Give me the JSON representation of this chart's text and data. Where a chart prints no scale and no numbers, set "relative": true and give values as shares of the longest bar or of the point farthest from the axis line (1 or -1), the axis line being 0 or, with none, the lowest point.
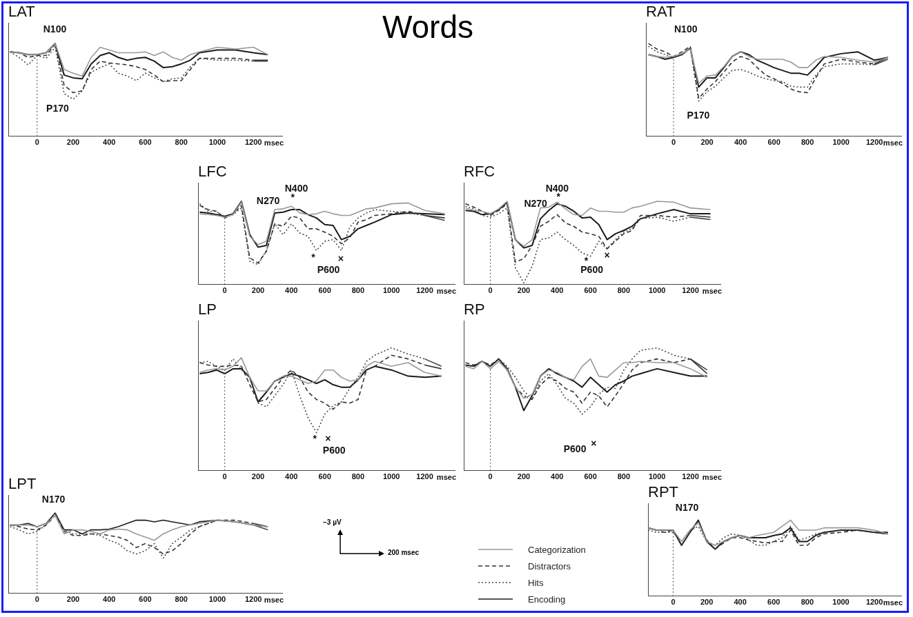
{
  "chart_data": [
    {
      "type": "line",
      "title": "LAT",
      "relative": true,
      "xlabel": "msec",
      "xlim": [
        -160,
        1360
      ],
      "xticks": [
        0,
        200,
        400,
        600,
        800,
        1000,
        1200
      ],
      "grid": false,
      "x": [
        -150,
        -100,
        -50,
        0,
        50,
        100,
        150,
        200,
        250,
        300,
        350,
        400,
        450,
        500,
        550,
        600,
        650,
        700,
        750,
        800,
        850,
        900,
        1000,
        1100,
        1200,
        1280
      ],
      "ref_lines": [
        {
          "axis": "x",
          "value": 0,
          "line_style": "dotted"
        }
      ],
      "annotations": [
        "N100",
        "P170"
      ],
      "series": [
        {
          "color": "#999999",
          "line_style": "solid",
          "values": [
            0.91,
            0.9,
            0.88,
            0.88,
            0.9,
            1.0,
            0.72,
            0.68,
            0.65,
            0.85,
            0.96,
            0.93,
            0.9,
            0.9,
            0.9,
            0.91,
            0.87,
            0.91,
            0.85,
            0.82,
            0.88,
            0.91,
            0.96,
            0.94,
            0.96,
            0.88
          ]
        },
        {
          "color": "#333333",
          "line_style": "dashed",
          "values": [
            0.91,
            0.9,
            0.85,
            0.87,
            0.87,
            0.99,
            0.55,
            0.47,
            0.49,
            0.72,
            0.81,
            0.79,
            0.78,
            0.77,
            0.75,
            0.72,
            0.66,
            0.59,
            0.6,
            0.6,
            0.72,
            0.84,
            0.84,
            0.84,
            0.82,
            0.82
          ]
        },
        {
          "color": "#444444",
          "line_style": "dotted",
          "values": [
            0.91,
            0.85,
            0.77,
            0.87,
            0.84,
            0.96,
            0.46,
            0.4,
            0.49,
            0.69,
            0.74,
            0.78,
            0.68,
            0.65,
            0.6,
            0.68,
            0.63,
            0.59,
            0.62,
            0.63,
            0.75,
            0.84,
            0.82,
            0.82,
            0.81,
            0.81
          ]
        },
        {
          "color": "#1a1a1a",
          "line_style": "solid",
          "values": [
            0.91,
            0.9,
            0.88,
            0.88,
            0.9,
            1.0,
            0.66,
            0.63,
            0.62,
            0.78,
            0.87,
            0.9,
            0.85,
            0.82,
            0.84,
            0.85,
            0.81,
            0.74,
            0.75,
            0.78,
            0.82,
            0.9,
            0.93,
            0.93,
            0.9,
            0.88
          ]
        }
      ]
    },
    {
      "type": "other",
      "title": "Words",
      "annotations": [
        "−3 µV",
        "200 msec"
      ]
    },
    {
      "type": "line",
      "title": "RAT",
      "relative": true,
      "xlabel": "msec",
      "xlim": [
        -165,
        1360
      ],
      "xticks": [
        0,
        200,
        400,
        600,
        800,
        1000,
        1200
      ],
      "grid": false,
      "x": [
        -150,
        -100,
        -50,
        0,
        50,
        100,
        150,
        200,
        250,
        300,
        350,
        400,
        450,
        500,
        550,
        600,
        650,
        700,
        750,
        800,
        850,
        900,
        1000,
        1100,
        1200,
        1280
      ],
      "ref_lines": [
        {
          "axis": "x",
          "value": 0,
          "line_style": "dotted"
        }
      ],
      "annotations": [
        "N100",
        "P170"
      ],
      "series": [
        {
          "color": "#999999",
          "line_style": "solid",
          "values": [
            0.88,
            0.86,
            0.85,
            0.86,
            0.89,
            0.94,
            0.57,
            0.65,
            0.66,
            0.75,
            0.86,
            0.91,
            0.86,
            0.83,
            0.83,
            0.83,
            0.83,
            0.8,
            0.74,
            0.74,
            0.82,
            0.86,
            0.85,
            0.82,
            0.8,
            0.85
          ]
        },
        {
          "color": "#333333",
          "line_style": "dashed",
          "values": [
            1.0,
            0.94,
            0.91,
            0.86,
            0.91,
            0.97,
            0.41,
            0.51,
            0.59,
            0.69,
            0.8,
            0.86,
            0.83,
            0.74,
            0.66,
            0.62,
            0.57,
            0.51,
            0.48,
            0.47,
            0.63,
            0.78,
            0.83,
            0.8,
            0.78,
            0.85
          ]
        },
        {
          "color": "#444444",
          "line_style": "dotted",
          "values": [
            0.97,
            0.91,
            0.88,
            0.85,
            0.89,
            0.95,
            0.38,
            0.48,
            0.54,
            0.63,
            0.71,
            0.72,
            0.69,
            0.65,
            0.62,
            0.6,
            0.59,
            0.54,
            0.53,
            0.53,
            0.66,
            0.75,
            0.78,
            0.78,
            0.77,
            0.83
          ]
        },
        {
          "color": "#1a1a1a",
          "line_style": "solid",
          "values": [
            0.88,
            0.86,
            0.83,
            0.85,
            0.88,
            0.95,
            0.53,
            0.63,
            0.63,
            0.74,
            0.86,
            0.91,
            0.88,
            0.82,
            0.78,
            0.74,
            0.71,
            0.68,
            0.68,
            0.66,
            0.75,
            0.85,
            0.89,
            0.91,
            0.82,
            0.85
          ]
        }
      ]
    },
    {
      "type": "line",
      "title": "LFC",
      "relative": true,
      "xlabel": "msec",
      "xlim": [
        -160,
        1380
      ],
      "xticks": [
        0,
        200,
        400,
        600,
        800,
        1000,
        1200
      ],
      "grid": false,
      "x": [
        -150,
        -100,
        -50,
        0,
        50,
        100,
        150,
        200,
        250,
        300,
        350,
        400,
        450,
        500,
        550,
        600,
        650,
        700,
        750,
        800,
        850,
        900,
        1000,
        1100,
        1200,
        1320
      ],
      "ref_lines": [
        {
          "axis": "x",
          "value": 0,
          "line_style": "dotted"
        }
      ],
      "annotations": [
        "N270",
        "N400",
        "*",
        "*",
        "×",
        "P600"
      ],
      "series": [
        {
          "color": "#999999",
          "line_style": "solid",
          "values": [
            0.85,
            0.84,
            0.83,
            0.81,
            0.84,
            0.99,
            0.58,
            0.48,
            0.52,
            0.9,
            0.91,
            0.94,
            0.86,
            0.84,
            0.85,
            0.88,
            0.85,
            0.83,
            0.83,
            0.87,
            0.91,
            0.92,
            0.97,
            0.98,
            0.89,
            0.85
          ]
        },
        {
          "color": "#333333",
          "line_style": "dashed",
          "values": [
            0.95,
            0.9,
            0.88,
            0.8,
            0.85,
            0.95,
            0.32,
            0.26,
            0.4,
            0.73,
            0.7,
            0.82,
            0.8,
            0.67,
            0.67,
            0.63,
            0.58,
            0.49,
            0.56,
            0.75,
            0.78,
            0.83,
            0.85,
            0.88,
            0.83,
            0.8
          ]
        },
        {
          "color": "#444444",
          "line_style": "dotted",
          "values": [
            0.97,
            0.88,
            0.88,
            0.8,
            0.84,
            0.92,
            0.28,
            0.24,
            0.41,
            0.73,
            0.6,
            0.73,
            0.62,
            0.58,
            0.41,
            0.52,
            0.54,
            0.41,
            0.69,
            0.8,
            0.86,
            0.9,
            0.88,
            0.86,
            0.83,
            0.77
          ]
        },
        {
          "color": "#1a1a1a",
          "line_style": "solid",
          "values": [
            0.87,
            0.86,
            0.84,
            0.82,
            0.85,
            1.0,
            0.6,
            0.45,
            0.47,
            0.86,
            0.87,
            0.9,
            0.9,
            0.84,
            0.8,
            0.72,
            0.71,
            0.54,
            0.58,
            0.67,
            0.71,
            0.75,
            0.84,
            0.86,
            0.85,
            0.84
          ]
        }
      ]
    },
    {
      "type": "line",
      "title": "RFC",
      "relative": true,
      "xlabel": "msec",
      "xlim": [
        -160,
        1380
      ],
      "xticks": [
        0,
        200,
        400,
        600,
        800,
        1000,
        1200
      ],
      "grid": false,
      "x": [
        -150,
        -100,
        -50,
        0,
        50,
        100,
        150,
        200,
        250,
        300,
        350,
        400,
        450,
        500,
        550,
        600,
        650,
        700,
        750,
        800,
        850,
        900,
        1000,
        1100,
        1200,
        1320
      ],
      "ref_lines": [
        {
          "axis": "x",
          "value": 0,
          "line_style": "dotted"
        }
      ],
      "annotations": [
        "N270",
        "N400",
        "*",
        "*",
        "P600",
        "×"
      ],
      "series": [
        {
          "color": "#999999",
          "line_style": "solid",
          "values": [
            0.92,
            0.89,
            0.88,
            0.85,
            0.91,
            1.0,
            0.54,
            0.46,
            0.54,
            0.92,
            0.93,
            0.99,
            0.91,
            0.84,
            0.83,
            0.92,
            0.88,
            0.88,
            0.87,
            0.87,
            0.92,
            0.94,
            1.0,
            0.99,
            0.92,
            0.9
          ]
        },
        {
          "color": "#333333",
          "line_style": "dashed",
          "values": [
            0.97,
            0.93,
            0.88,
            0.83,
            0.89,
            0.97,
            0.27,
            0.31,
            0.47,
            0.7,
            0.76,
            0.84,
            0.74,
            0.7,
            0.63,
            0.61,
            0.58,
            0.43,
            0.52,
            0.61,
            0.65,
            0.83,
            0.83,
            0.81,
            0.83,
            0.81
          ]
        },
        {
          "color": "#444444",
          "line_style": "dotted",
          "values": [
            0.94,
            0.91,
            0.83,
            0.81,
            0.85,
            0.92,
            0.2,
            0.02,
            0.22,
            0.54,
            0.56,
            0.63,
            0.54,
            0.47,
            0.38,
            0.34,
            0.52,
            0.43,
            0.54,
            0.63,
            0.67,
            0.79,
            0.81,
            0.76,
            0.81,
            0.78
          ]
        },
        {
          "color": "#1a1a1a",
          "line_style": "solid",
          "values": [
            0.89,
            0.88,
            0.84,
            0.85,
            0.9,
            0.99,
            0.54,
            0.44,
            0.47,
            0.79,
            0.89,
            0.97,
            0.94,
            0.88,
            0.8,
            0.81,
            0.72,
            0.54,
            0.61,
            0.65,
            0.7,
            0.79,
            0.85,
            0.9,
            0.85,
            0.85
          ]
        }
      ]
    },
    {
      "type": "line",
      "title": "LP",
      "relative": true,
      "xlabel": "msec",
      "xlim": [
        -160,
        1380
      ],
      "xticks": [
        0,
        200,
        400,
        600,
        800,
        1000,
        1200
      ],
      "grid": false,
      "x": [
        -150,
        -100,
        -50,
        0,
        50,
        100,
        150,
        200,
        250,
        300,
        350,
        400,
        450,
        500,
        550,
        600,
        650,
        700,
        750,
        800,
        850,
        900,
        1000,
        1100,
        1200,
        1300
      ],
      "ref_lines": [
        {
          "axis": "x",
          "value": 0,
          "line_style": "dotted"
        }
      ],
      "annotations": [
        "*",
        "×",
        "P600"
      ],
      "series": [
        {
          "color": "#999999",
          "line_style": "solid",
          "values": [
            0.8,
            0.82,
            0.83,
            0.82,
            0.85,
            0.92,
            0.76,
            0.65,
            0.65,
            0.73,
            0.77,
            0.77,
            0.74,
            0.71,
            0.73,
            0.82,
            0.82,
            0.76,
            0.73,
            0.74,
            0.85,
            0.89,
            0.85,
            0.88,
            0.8,
            0.77
          ]
        },
        {
          "color": "#333333",
          "line_style": "dashed",
          "values": [
            0.88,
            0.86,
            0.85,
            0.85,
            0.86,
            0.85,
            0.7,
            0.56,
            0.58,
            0.67,
            0.76,
            0.82,
            0.76,
            0.64,
            0.58,
            0.55,
            0.5,
            0.56,
            0.55,
            0.58,
            0.82,
            0.85,
            0.94,
            0.91,
            0.86,
            0.83
          ]
        },
        {
          "color": "#444444",
          "line_style": "dotted",
          "values": [
            0.88,
            0.89,
            0.85,
            0.82,
            0.91,
            0.82,
            0.76,
            0.55,
            0.52,
            0.61,
            0.7,
            0.82,
            0.61,
            0.43,
            0.31,
            0.46,
            0.53,
            0.56,
            0.67,
            0.76,
            0.89,
            0.94,
            1.0,
            0.95,
            0.91,
            0.85
          ]
        },
        {
          "color": "#1a1a1a",
          "line_style": "solid",
          "values": [
            0.79,
            0.8,
            0.82,
            0.79,
            0.83,
            0.83,
            0.76,
            0.56,
            0.64,
            0.73,
            0.76,
            0.79,
            0.77,
            0.74,
            0.71,
            0.74,
            0.7,
            0.68,
            0.68,
            0.74,
            0.82,
            0.85,
            0.82,
            0.77,
            0.76,
            0.77
          ]
        }
      ]
    },
    {
      "type": "line",
      "title": "RP",
      "relative": true,
      "xlabel": "msec",
      "xlim": [
        -160,
        1380
      ],
      "xticks": [
        0,
        200,
        400,
        600,
        800,
        1000,
        1200
      ],
      "grid": false,
      "x": [
        -150,
        -100,
        -50,
        0,
        50,
        100,
        150,
        200,
        250,
        300,
        350,
        400,
        450,
        500,
        550,
        600,
        650,
        700,
        750,
        800,
        850,
        900,
        1000,
        1100,
        1200,
        1300
      ],
      "ref_lines": [
        {
          "axis": "x",
          "value": 0,
          "line_style": "dotted"
        }
      ],
      "annotations": [
        "P600",
        "×"
      ],
      "series": [
        {
          "color": "#999999",
          "line_style": "solid",
          "values": [
            0.85,
            0.83,
            0.89,
            0.83,
            0.89,
            0.82,
            0.68,
            0.59,
            0.62,
            0.77,
            0.82,
            0.8,
            0.76,
            0.74,
            0.85,
            0.91,
            0.77,
            0.76,
            0.82,
            0.88,
            0.88,
            0.89,
            0.88,
            0.88,
            0.83,
            0.76
          ]
        },
        {
          "color": "#333333",
          "line_style": "dashed",
          "values": [
            0.88,
            0.86,
            0.89,
            0.86,
            0.91,
            0.82,
            0.68,
            0.61,
            0.58,
            0.7,
            0.76,
            0.73,
            0.67,
            0.64,
            0.55,
            0.64,
            0.61,
            0.52,
            0.61,
            0.71,
            0.82,
            0.88,
            0.91,
            0.88,
            0.91,
            0.79
          ]
        },
        {
          "color": "#444444",
          "line_style": "dotted",
          "values": [
            0.86,
            0.85,
            0.89,
            0.85,
            0.91,
            0.85,
            0.76,
            0.65,
            0.58,
            0.73,
            0.79,
            0.7,
            0.59,
            0.55,
            0.46,
            0.52,
            0.62,
            0.68,
            0.67,
            0.82,
            0.91,
            0.98,
            1.0,
            0.94,
            0.91,
            0.82
          ]
        },
        {
          "color": "#1a1a1a",
          "line_style": "solid",
          "values": [
            0.86,
            0.85,
            0.89,
            0.85,
            0.91,
            0.83,
            0.68,
            0.49,
            0.61,
            0.77,
            0.83,
            0.79,
            0.76,
            0.73,
            0.68,
            0.76,
            0.7,
            0.64,
            0.7,
            0.73,
            0.77,
            0.79,
            0.83,
            0.8,
            0.77,
            0.77
          ]
        }
      ]
    },
    {
      "type": "line",
      "title": "LPT",
      "relative": true,
      "xlabel": "msec",
      "xlim": [
        -160,
        1360
      ],
      "xticks": [
        0,
        200,
        400,
        600,
        800,
        1000,
        1200
      ],
      "grid": false,
      "legend": "right",
      "x": [
        -150,
        -100,
        -50,
        0,
        50,
        100,
        150,
        200,
        250,
        300,
        350,
        400,
        450,
        500,
        550,
        600,
        650,
        700,
        750,
        800,
        850,
        900,
        1000,
        1100,
        1200,
        1280
      ],
      "ref_lines": [
        {
          "axis": "x",
          "value": 0,
          "line_style": "dotted"
        }
      ],
      "annotations": [
        "N170"
      ],
      "series": [
        {
          "name": "Categorization",
          "color": "#999999",
          "line_style": "solid",
          "values": [
            0.85,
            0.85,
            0.85,
            0.83,
            0.87,
            0.97,
            0.74,
            0.79,
            0.79,
            0.77,
            0.74,
            0.79,
            0.8,
            0.79,
            0.74,
            0.7,
            0.66,
            0.74,
            0.79,
            0.83,
            0.85,
            0.87,
            0.91,
            0.89,
            0.85,
            0.83
          ]
        },
        {
          "name": "Distractors",
          "color": "#333333",
          "line_style": "dashed",
          "values": [
            0.85,
            0.83,
            0.8,
            0.79,
            0.85,
            0.97,
            0.77,
            0.72,
            0.72,
            0.74,
            0.74,
            0.72,
            0.7,
            0.66,
            0.57,
            0.62,
            0.57,
            0.49,
            0.53,
            0.62,
            0.74,
            0.83,
            0.91,
            0.91,
            0.87,
            0.83
          ]
        },
        {
          "name": "Hits",
          "color": "#444444",
          "line_style": "dotted",
          "values": [
            0.83,
            0.79,
            0.74,
            0.77,
            0.85,
            1.0,
            0.79,
            0.74,
            0.74,
            0.74,
            0.72,
            0.66,
            0.62,
            0.53,
            0.49,
            0.53,
            0.62,
            0.44,
            0.62,
            0.7,
            0.79,
            0.83,
            0.91,
            0.89,
            0.85,
            0.79
          ]
        },
        {
          "name": "Encoding",
          "color": "#1a1a1a",
          "line_style": "solid",
          "values": [
            0.85,
            0.85,
            0.87,
            0.83,
            0.87,
            1.0,
            0.79,
            0.79,
            0.74,
            0.79,
            0.79,
            0.8,
            0.83,
            0.87,
            0.91,
            0.91,
            0.89,
            0.91,
            0.89,
            0.87,
            0.85,
            0.89,
            0.91,
            0.89,
            0.85,
            0.83
          ]
        }
      ]
    },
    {
      "type": "line",
      "title": "RPT",
      "relative": true,
      "xlabel": "msec",
      "xlim": [
        -150,
        1360
      ],
      "xticks": [
        0,
        200,
        400,
        600,
        800,
        1000,
        1200
      ],
      "grid": false,
      "x": [
        -150,
        -100,
        -50,
        0,
        50,
        100,
        150,
        200,
        250,
        300,
        350,
        400,
        450,
        500,
        550,
        600,
        650,
        700,
        750,
        800,
        850,
        900,
        1000,
        1100,
        1200,
        1280
      ],
      "ref_lines": [
        {
          "axis": "x",
          "value": 0,
          "line_style": "dotted"
        }
      ],
      "annotations": [
        "N170"
      ],
      "series": [
        {
          "color": "#999999",
          "line_style": "solid",
          "values": [
            0.9,
            0.87,
            0.87,
            0.87,
            0.72,
            0.87,
            0.97,
            0.72,
            0.67,
            0.72,
            0.77,
            0.8,
            0.77,
            0.8,
            0.82,
            0.84,
            0.92,
            1.0,
            0.87,
            0.87,
            0.87,
            0.9,
            0.9,
            0.9,
            0.87,
            0.82
          ]
        },
        {
          "color": "#333333",
          "line_style": "dashed",
          "values": [
            0.9,
            0.87,
            0.84,
            0.87,
            0.67,
            0.84,
            0.97,
            0.74,
            0.62,
            0.7,
            0.77,
            0.77,
            0.74,
            0.72,
            0.7,
            0.72,
            0.72,
            0.87,
            0.67,
            0.67,
            0.77,
            0.82,
            0.84,
            0.87,
            0.84,
            0.82
          ]
        },
        {
          "color": "#444444",
          "line_style": "dotted",
          "values": [
            0.87,
            0.84,
            0.84,
            0.84,
            0.72,
            0.87,
            0.92,
            0.72,
            0.67,
            0.77,
            0.82,
            0.8,
            0.74,
            0.67,
            0.67,
            0.72,
            0.77,
            0.92,
            0.74,
            0.77,
            0.82,
            0.84,
            0.87,
            0.87,
            0.84,
            0.82
          ]
        },
        {
          "color": "#1a1a1a",
          "line_style": "solid",
          "values": [
            0.9,
            0.87,
            0.87,
            0.87,
            0.67,
            0.84,
            1.0,
            0.72,
            0.62,
            0.72,
            0.77,
            0.8,
            0.77,
            0.77,
            0.77,
            0.8,
            0.82,
            0.9,
            0.72,
            0.72,
            0.8,
            0.84,
            0.87,
            0.87,
            0.84,
            0.84
          ]
        }
      ]
    }
  ]
}
